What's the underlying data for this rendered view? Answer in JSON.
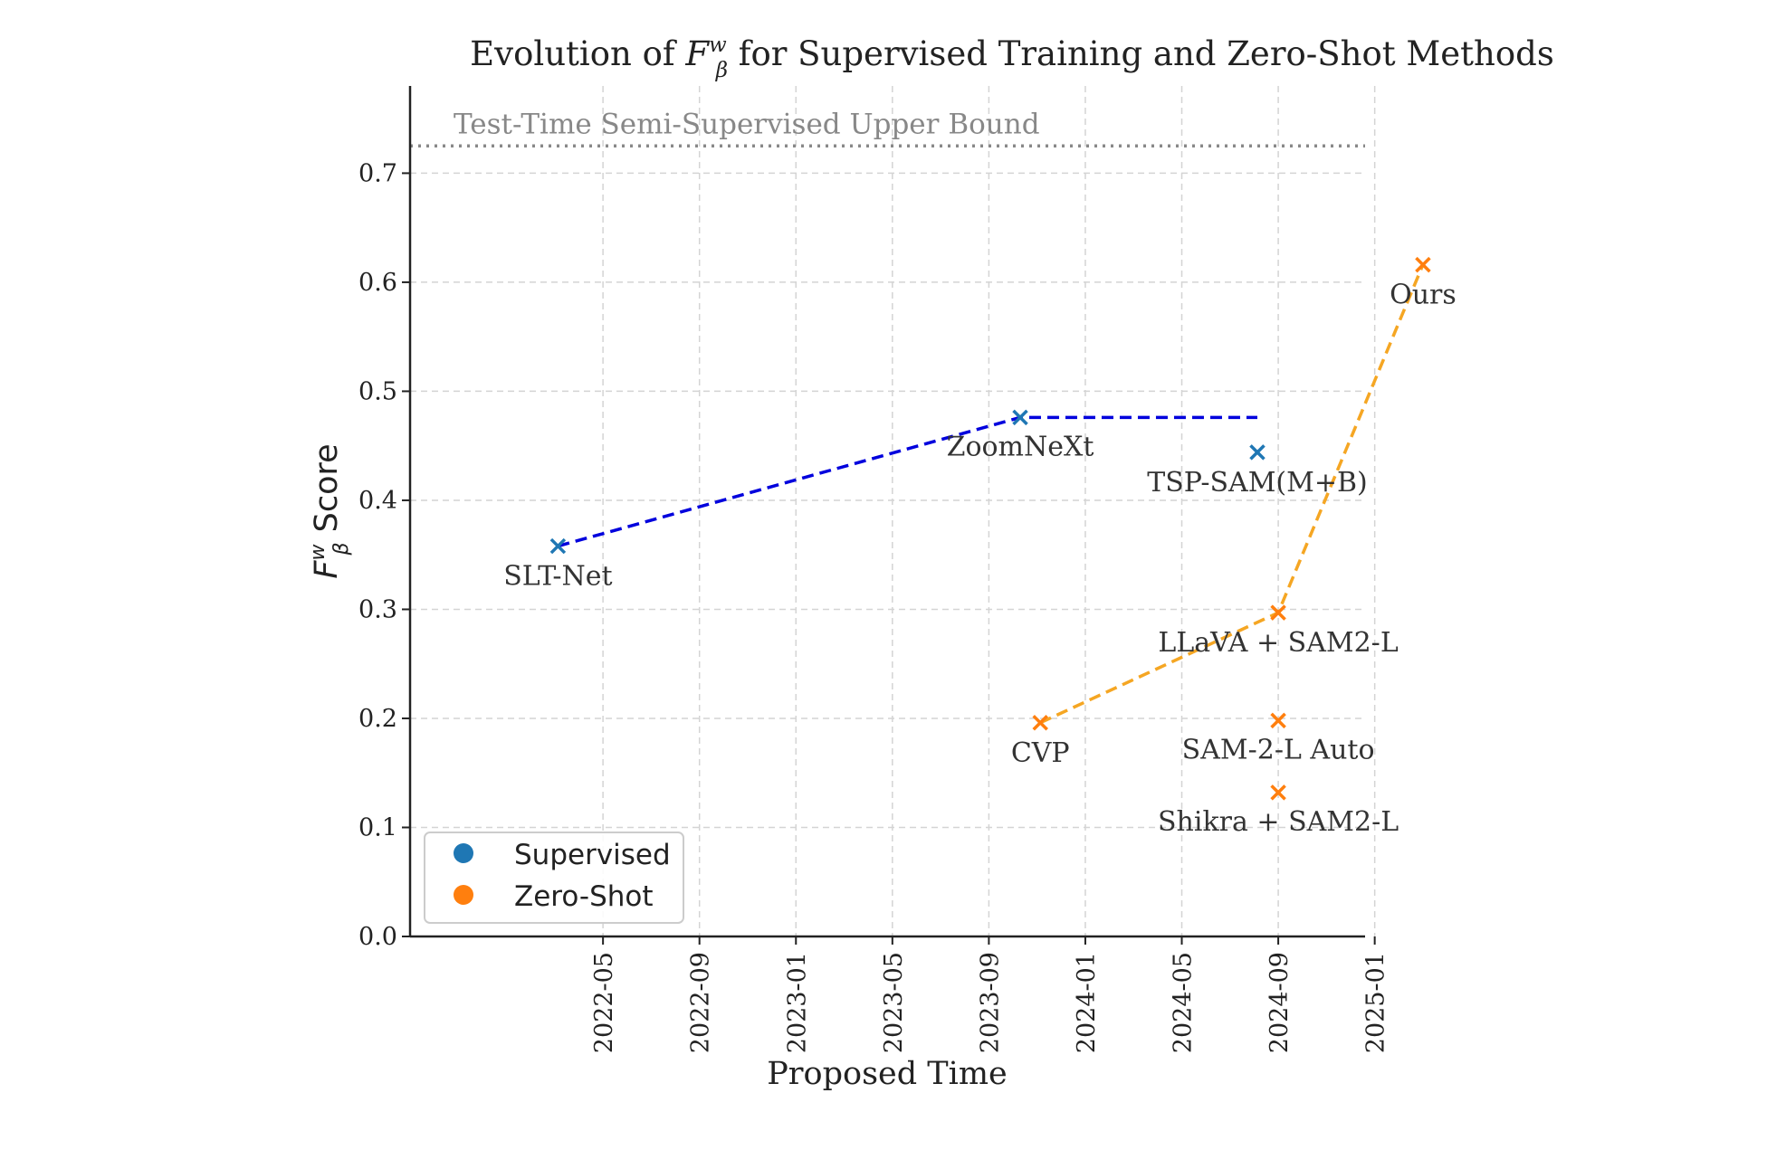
{
  "chart_data": {
    "type": "scatter",
    "title_prefix": "Evolution of ",
    "title_symbol": "F",
    "title_sup": "w",
    "title_sub": "β",
    "title_suffix": " for Supervised Training and Zero-Shot Methods",
    "xlabel": "Proposed Time",
    "ylabel_symbol": "F",
    "ylabel_sup": "w",
    "ylabel_sub": "β",
    "ylabel_suffix": " Score",
    "ylim": [
      0.0,
      0.78
    ],
    "xlim_month_index": [
      -4,
      35.6
    ],
    "x_origin": "2022-01",
    "y_ticks": [
      "0.0",
      "0.1",
      "0.2",
      "0.3",
      "0.4",
      "0.5",
      "0.6",
      "0.7"
    ],
    "x_ticks": [
      "2022-05",
      "2022-09",
      "2023-01",
      "2023-05",
      "2023-09",
      "2024-01",
      "2024-05",
      "2024-09",
      "2025-01"
    ],
    "grid": true,
    "upper_bound": {
      "label": "Test-Time Semi-Supervised Upper Bound",
      "value": 0.725
    },
    "legend": {
      "position": "lower-left",
      "entries": [
        {
          "label": "Supervised",
          "color": "#1f77b4"
        },
        {
          "label": "Zero-Shot",
          "color": "#ff7f0e"
        }
      ]
    },
    "series": [
      {
        "name": "Supervised",
        "color": "#1f77b4",
        "points": [
          {
            "label": "SLT-Net",
            "date": "2022-03-05",
            "value": 0.358
          },
          {
            "label": "ZoomNeXt",
            "date": "2023-10-10",
            "value": 0.476
          },
          {
            "label": "TSP-SAM(M+B)",
            "date": "2024-08-05",
            "value": 0.444
          }
        ]
      },
      {
        "name": "Zero-Shot",
        "color": "#ff7f0e",
        "points": [
          {
            "label": "CVP",
            "date": "2023-11-05",
            "value": 0.196
          },
          {
            "label": "LLaVA + SAM2-L",
            "date": "2024-09-01",
            "value": 0.297
          },
          {
            "label": "SAM-2-L Auto",
            "date": "2024-09-01",
            "value": 0.198
          },
          {
            "label": "Shikra + SAM2-L",
            "date": "2024-09-01",
            "value": 0.132
          },
          {
            "label": "Ours",
            "date": "2025-03-01",
            "value": 0.616
          }
        ]
      }
    ],
    "trend_lines": [
      {
        "name": "Supervised frontier",
        "color": "#0000dd",
        "points": [
          {
            "date": "2022-03-05",
            "value": 0.358
          },
          {
            "date": "2023-10-10",
            "value": 0.476
          },
          {
            "date": "2024-08-05",
            "value": 0.476
          }
        ]
      },
      {
        "name": "Zero-Shot frontier",
        "color": "#f5a623",
        "points": [
          {
            "date": "2023-11-05",
            "value": 0.196
          },
          {
            "date": "2024-09-01",
            "value": 0.297
          },
          {
            "date": "2025-03-01",
            "value": 0.616
          }
        ]
      }
    ]
  }
}
